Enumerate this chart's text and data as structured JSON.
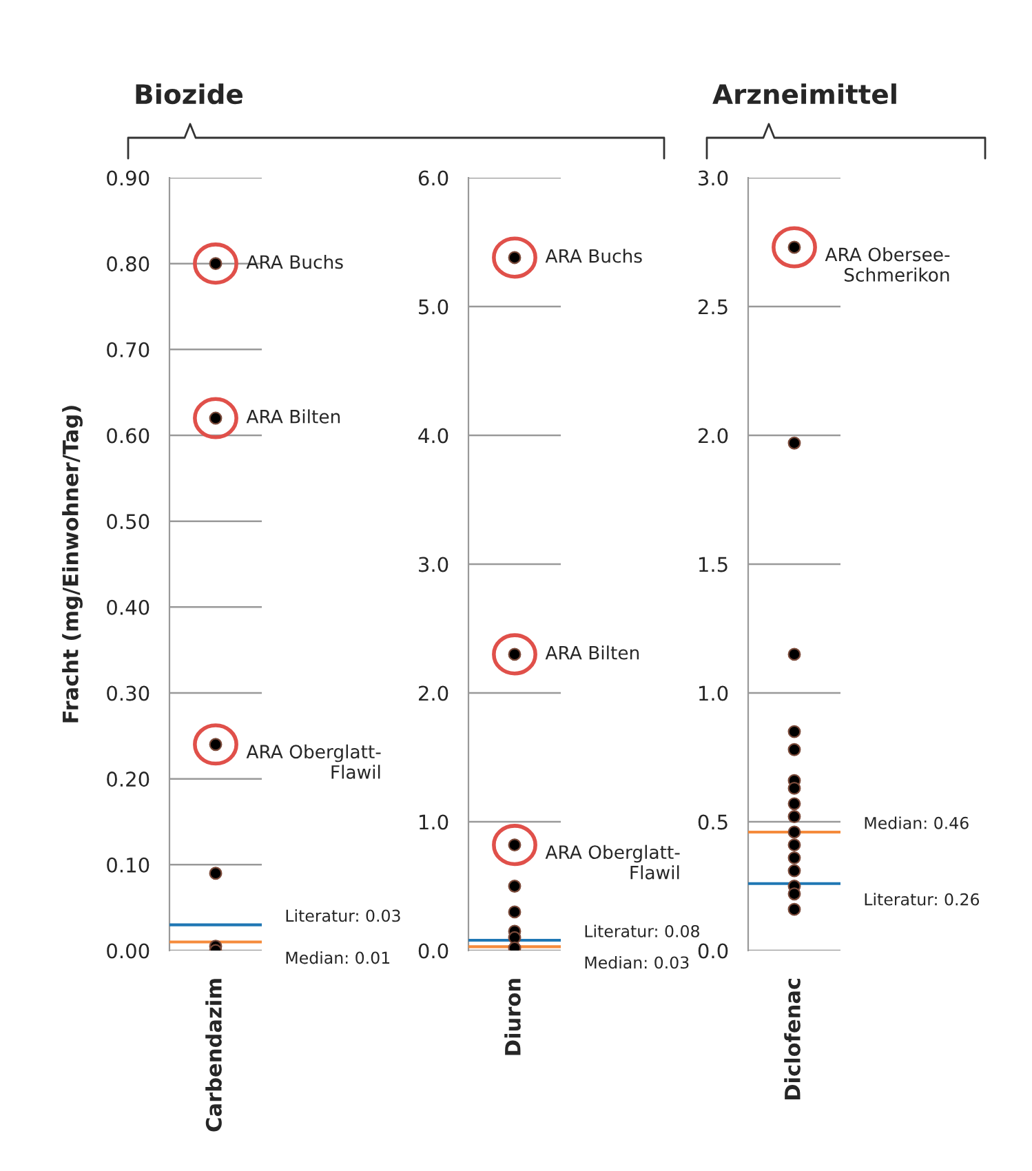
{
  "chart_data": [
    {
      "type": "scatter",
      "ylabel": "Fracht (mg/Einwohner/Tag)",
      "categories": [
        "Carbendazim"
      ],
      "grid": "y",
      "marker": "circle",
      "series": [
        {
          "color": "#000000",
          "x": [
            "Carbendazim",
            "Carbendazim",
            "Carbendazim",
            "Carbendazim",
            "Carbendazim",
            "Carbendazim",
            "Carbendazim",
            "Carbendazim",
            "Carbendazim"
          ],
          "values": [
            0.8,
            0.62,
            0.24,
            0.09,
            null,
            null,
            null,
            0.005,
            0.0
          ]
        }
      ],
      "ylim": [
        0,
        0.9
      ],
      "yticks": [
        {
          "value": 0,
          "label": "0.00"
        },
        {
          "value": 0.1,
          "label": "0.10"
        },
        {
          "value": 0.2,
          "label": "0.20"
        },
        {
          "value": 0.3,
          "label": "0.30"
        },
        {
          "value": 0.4,
          "label": "0.40"
        },
        {
          "value": 0.5,
          "label": "0.50"
        },
        {
          "value": 0.6,
          "label": "0.60"
        },
        {
          "value": 0.7,
          "label": "0.70"
        },
        {
          "value": 0.8,
          "label": "0.80"
        },
        {
          "value": 0.9,
          "label": "0.90"
        }
      ],
      "ref_lines": [
        {
          "axis": "y",
          "value": 0.03,
          "label": "Literatur: 0.03",
          "color": "#1f77b4"
        },
        {
          "axis": "y",
          "value": 0.01,
          "label": "Median: 0.01",
          "color": "#f58b3c"
        }
      ],
      "annotations": [
        "Biozide",
        {
          "text": "ARA Buchs",
          "x": "Carbendazim",
          "y": 0.8
        },
        {
          "text": "ARA Bilten",
          "x": "Carbendazim",
          "y": 0.62
        },
        {
          "text": "ARA Oberglatt-\nFlawil",
          "x": "Carbendazim",
          "y": 0.24
        }
      ]
    },
    {
      "type": "scatter",
      "categories": [
        "Diuron"
      ],
      "grid": "y",
      "marker": "circle",
      "series": [
        {
          "color": "#000000",
          "x": [
            "Diuron",
            "Diuron",
            "Diuron",
            "Diuron",
            "Diuron",
            "Diuron",
            "Diuron",
            "Diuron",
            "Diuron"
          ],
          "values": [
            5.38,
            2.3,
            0.82,
            0.5,
            0.3,
            0.15,
            0.1,
            null,
            0.02
          ]
        }
      ],
      "ylim": [
        0,
        6
      ],
      "yticks": [
        {
          "value": 0,
          "label": "0.0"
        },
        {
          "value": 1,
          "label": "1.0"
        },
        {
          "value": 2,
          "label": "2.0"
        },
        {
          "value": 3,
          "label": "3.0"
        },
        {
          "value": 4,
          "label": "4.0"
        },
        {
          "value": 5,
          "label": "5.0"
        },
        {
          "value": 6,
          "label": "6.0"
        }
      ],
      "ref_lines": [
        {
          "axis": "y",
          "value": 0.08,
          "label": "Literatur: 0.08",
          "color": "#1f77b4"
        },
        {
          "axis": "y",
          "value": 0.03,
          "label": "Median: 0.03",
          "color": "#f58b3c"
        }
      ],
      "annotations": [
        {
          "text": "ARA Buchs",
          "x": "Diuron",
          "y": 5.38
        },
        {
          "text": "ARA Bilten",
          "x": "Diuron",
          "y": 2.3
        },
        {
          "text": "ARA Oberglatt-\nFlawil",
          "x": "Diuron",
          "y": 0.82
        }
      ]
    },
    {
      "type": "scatter",
      "categories": [
        "Diclofenac"
      ],
      "grid": "y",
      "marker": "circle",
      "series": [
        {
          "color": "#000000",
          "x": [
            "Diclofenac",
            "Diclofenac",
            "Diclofenac",
            "Diclofenac",
            "Diclofenac",
            "Diclofenac",
            "Diclofenac",
            "Diclofenac",
            "Diclofenac",
            "Diclofenac",
            "Diclofenac",
            "Diclofenac",
            "Diclofenac",
            "Diclofenac",
            "Diclofenac",
            "Diclofenac"
          ],
          "values": [
            2.73,
            1.97,
            1.15,
            0.85,
            0.78,
            0.66,
            0.63,
            0.57,
            0.52,
            0.46,
            0.41,
            0.36,
            0.31,
            0.25,
            0.22,
            0.16
          ]
        }
      ],
      "ylim": [
        0,
        3
      ],
      "yticks": [
        {
          "value": 0,
          "label": "0.0"
        },
        {
          "value": 0.5,
          "label": "0.5"
        },
        {
          "value": 1,
          "label": "1.0"
        },
        {
          "value": 1.5,
          "label": "1.5"
        },
        {
          "value": 2,
          "label": "2.0"
        },
        {
          "value": 2.5,
          "label": "2.5"
        },
        {
          "value": 3,
          "label": "3.0"
        }
      ],
      "ref_lines": [
        {
          "axis": "y",
          "value": 0.46,
          "label": "Median: 0.46",
          "color": "#f58b3c"
        },
        {
          "axis": "y",
          "value": 0.26,
          "label": "Literatur: 0.26",
          "color": "#1f77b4"
        }
      ],
      "annotations": [
        "Arzneimittel",
        {
          "text": "ARA Obersee-\nSchmerikon",
          "x": "Diclofenac",
          "y": 2.73
        }
      ]
    }
  ]
}
